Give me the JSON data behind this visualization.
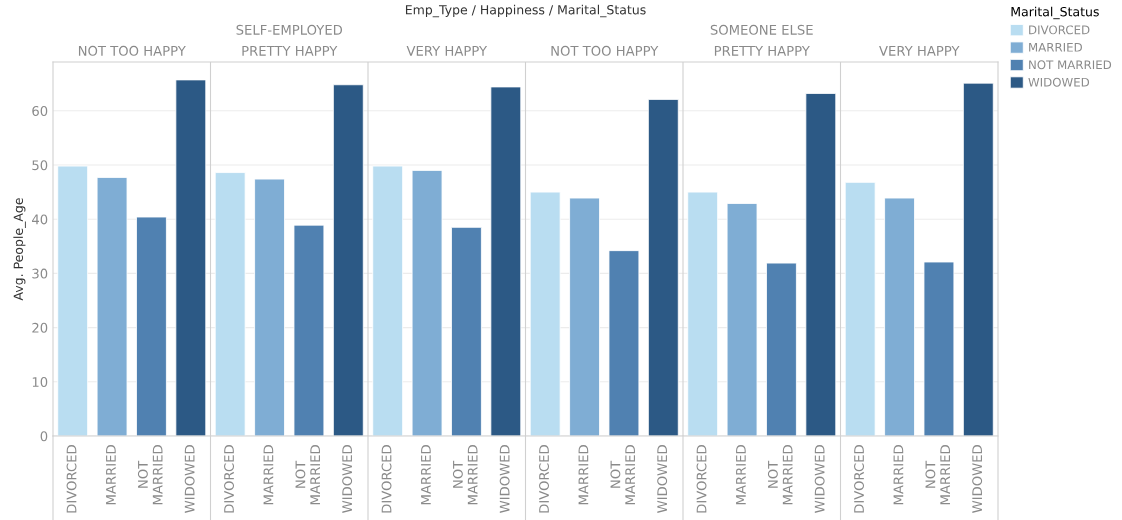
{
  "chart_data": {
    "type": "bar",
    "title": "Emp_Type / Happiness / Marital_Status",
    "annotations": [
      "SELF-EMPLOYED",
      "SOMEONE ELSE",
      "NOT TOO HAPPY",
      "PRETTY HAPPY",
      "VERY HAPPY",
      "NOT TOO HAPPY",
      "PRETTY HAPPY",
      "VERY HAPPY"
    ],
    "ylabel": "Avg. People_Age",
    "categories": [
      "DIVORCED",
      "MARRIED",
      "NOT MARRIED",
      "WIDOWED",
      "DIVORCED",
      "MARRIED",
      "NOT MARRIED",
      "WIDOWED",
      "DIVORCED",
      "MARRIED",
      "NOT MARRIED",
      "WIDOWED",
      "DIVORCED",
      "MARRIED",
      "NOT MARRIED",
      "WIDOWED",
      "DIVORCED",
      "MARRIED",
      "NOT MARRIED",
      "WIDOWED",
      "DIVORCED",
      "MARRIED",
      "NOT MARRIED",
      "WIDOWED"
    ],
    "series": [
      {
        "name": "DIVORCED",
        "color": "#b9ddf1",
        "values": [
          49.8,
          null,
          null,
          null,
          48.6,
          null,
          null,
          null,
          49.8,
          null,
          null,
          null,
          45.0,
          null,
          null,
          null,
          45.0,
          null,
          null,
          null,
          46.8,
          null,
          null,
          null
        ]
      },
      {
        "name": "MARRIED",
        "color": "#7fadd4",
        "values": [
          null,
          47.7,
          null,
          null,
          null,
          47.4,
          null,
          null,
          null,
          49.0,
          null,
          null,
          null,
          43.9,
          null,
          null,
          null,
          42.9,
          null,
          null,
          null,
          43.9,
          null,
          null
        ]
      },
      {
        "name": "NOT MARRIED",
        "color": "#5081b1",
        "values": [
          null,
          null,
          40.4,
          null,
          null,
          null,
          38.9,
          null,
          null,
          null,
          38.5,
          null,
          null,
          null,
          34.2,
          null,
          null,
          null,
          31.9,
          null,
          null,
          null,
          32.1,
          null
        ]
      },
      {
        "name": "WIDOWED",
        "color": "#2c5985",
        "values": [
          null,
          null,
          null,
          65.7,
          null,
          null,
          null,
          64.8,
          null,
          null,
          null,
          64.4,
          null,
          null,
          null,
          62.1,
          null,
          null,
          null,
          63.2,
          null,
          null,
          null,
          65.1
        ]
      }
    ],
    "ylim": [
      0,
      69
    ],
    "yticks": [
      0,
      10,
      20,
      30,
      40,
      50,
      60
    ],
    "grid": "y",
    "legend": "top right",
    "legend_title": "Marital_Status"
  }
}
